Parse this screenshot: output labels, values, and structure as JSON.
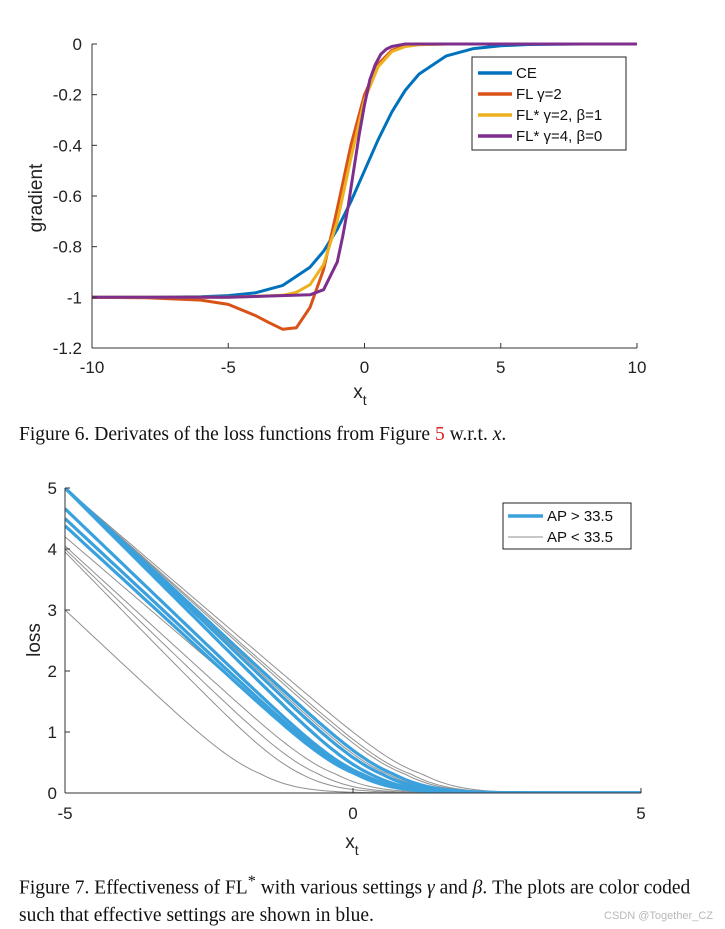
{
  "chart_data": [
    {
      "type": "line",
      "xlabel": "x",
      "xlabel_sub": "t",
      "ylabel": "gradient",
      "xlim": [
        -10,
        10
      ],
      "ylim": [
        -1.2,
        0
      ],
      "xticks": [
        "-10",
        "-5",
        "0",
        "5",
        "10"
      ],
      "yticks": [
        "0",
        "-0.2",
        "-0.4",
        "-0.6",
        "-0.8",
        "-1",
        "-1.2"
      ],
      "legend_position": "top-right",
      "series": [
        {
          "name": "CE",
          "color": "#0072BD",
          "x": [
            -10,
            -8,
            -6,
            -5,
            -4,
            -3,
            -2,
            -1.5,
            -1,
            -0.5,
            0,
            0.5,
            1,
            1.5,
            2,
            3,
            4,
            5,
            6,
            8,
            10
          ],
          "y": [
            -1,
            -1,
            -0.998,
            -0.993,
            -0.982,
            -0.953,
            -0.881,
            -0.818,
            -0.731,
            -0.622,
            -0.5,
            -0.378,
            -0.269,
            -0.182,
            -0.119,
            -0.047,
            -0.018,
            -0.007,
            -0.002,
            0,
            0
          ]
        },
        {
          "name": "FL γ=2",
          "color": "#D95319",
          "x": [
            -10,
            -8,
            -6,
            -5,
            -4,
            -3.5,
            -3,
            -2.5,
            -2,
            -1.5,
            -1,
            -0.5,
            0,
            0.5,
            1,
            1.5,
            2,
            3,
            5,
            10
          ],
          "y": [
            -1,
            -1.002,
            -1.011,
            -1.028,
            -1.072,
            -1.1,
            -1.126,
            -1.12,
            -1.04,
            -0.89,
            -0.65,
            -0.4,
            -0.2,
            -0.08,
            -0.025,
            -0.007,
            -0.002,
            0,
            0,
            0
          ]
        },
        {
          "name": "FL* γ=2, β=1",
          "color": "#EDB120",
          "x": [
            -10,
            -5,
            -3,
            -2.5,
            -2,
            -1.5,
            -1,
            -0.5,
            0,
            0.5,
            1,
            1.5,
            2,
            3,
            5,
            10
          ],
          "y": [
            -1,
            -1,
            -0.992,
            -0.98,
            -0.95,
            -0.87,
            -0.7,
            -0.45,
            -0.22,
            -0.09,
            -0.03,
            -0.01,
            -0.003,
            0,
            0,
            0
          ]
        },
        {
          "name": "FL* γ=4, β=0",
          "color": "#7E2F8E",
          "x": [
            -10,
            -5,
            -2,
            -1.5,
            -1,
            -0.8,
            -0.6,
            -0.4,
            -0.2,
            0,
            0.2,
            0.4,
            0.6,
            0.8,
            1,
            1.5,
            2,
            5,
            10
          ],
          "y": [
            -1,
            -1,
            -0.99,
            -0.97,
            -0.86,
            -0.76,
            -0.64,
            -0.5,
            -0.36,
            -0.24,
            -0.14,
            -0.08,
            -0.04,
            -0.02,
            -0.01,
            0,
            0,
            0,
            0
          ]
        }
      ]
    },
    {
      "type": "line",
      "xlabel": "x",
      "xlabel_sub": "t",
      "ylabel": "loss",
      "xlim": [
        -5,
        5
      ],
      "ylim": [
        0,
        5
      ],
      "xticks": [
        "-5",
        "0",
        "5"
      ],
      "yticks": [
        "0",
        "1",
        "2",
        "3",
        "4",
        "5"
      ],
      "legend_position": "top-right",
      "legend": [
        {
          "name": "AP > 33.5",
          "color": "#3AA1DD"
        },
        {
          "name": "AP < 33.5",
          "color": "#909090"
        }
      ],
      "groups": [
        {
          "group": "AP > 33.5",
          "color": "#3AA1DD",
          "curves": [
            {
              "intercept_at_neg5": 5.0,
              "knee_x": 0.3
            },
            {
              "intercept_at_neg5": 4.66,
              "knee_x": 0.15
            },
            {
              "intercept_at_neg5": 4.5,
              "knee_x": 0.1
            },
            {
              "intercept_at_neg5": 4.38,
              "knee_x": 0.05
            },
            {
              "intercept_at_neg5": 5.0,
              "knee_x": 0.5
            },
            {
              "intercept_at_neg5": 5.0,
              "knee_x": 0.7
            }
          ]
        },
        {
          "group": "AP < 33.5",
          "color": "#909090",
          "curves": [
            {
              "intercept_at_neg5": 5.0,
              "knee_x": 1.2
            },
            {
              "intercept_at_neg5": 5.0,
              "knee_x": 0.9
            },
            {
              "intercept_at_neg5": 5.0,
              "knee_x": 1.0
            },
            {
              "intercept_at_neg5": 4.05,
              "knee_x": -0.3
            },
            {
              "intercept_at_neg5": 4.0,
              "knee_x": -0.6
            },
            {
              "intercept_at_neg5": 3.95,
              "knee_x": -0.9
            },
            {
              "intercept_at_neg5": 3.0,
              "knee_x": -1.6
            },
            {
              "intercept_at_neg5": 4.2,
              "knee_x": 0.2
            },
            {
              "intercept_at_neg5": 5.0,
              "knee_x": 0.6
            }
          ]
        }
      ]
    }
  ],
  "captions": {
    "fig6_prefix": "Figure 6. Derivates of the loss functions from Figure ",
    "fig6_ref": "5",
    "fig6_suffix": " w.r.t. ",
    "fig6_var": "x",
    "fig6_end": ".",
    "fig7_a": "Figure 7. Effectiveness of FL",
    "fig7_sup": "*",
    "fig7_b": " with various settings ",
    "fig7_gamma": "γ",
    "fig7_c": " and ",
    "fig7_beta": "β",
    "fig7_d": ". The plots are color coded such that effective settings are shown in blue."
  },
  "watermark": "CSDN @Together_CZ"
}
